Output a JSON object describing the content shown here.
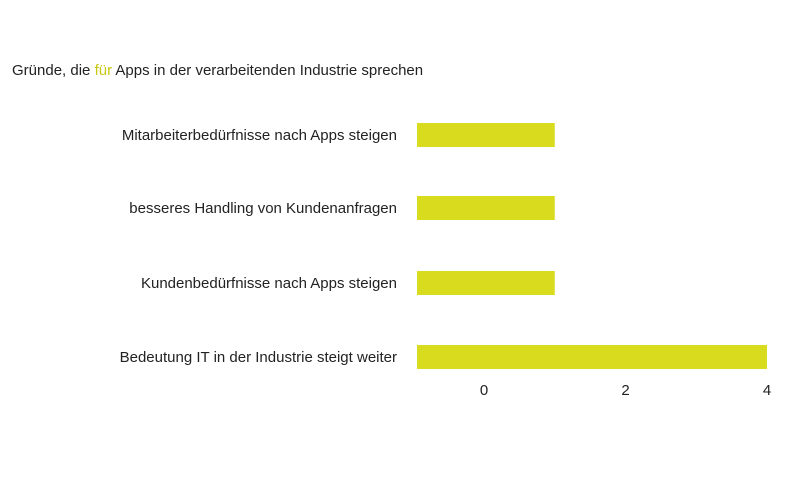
{
  "title": {
    "before": "Gründe, die ",
    "highlight": "für",
    "after": " Apps in der verarbeitenden Industrie sprechen"
  },
  "colors": {
    "bar": "#d9dc1e",
    "highlight": "#c9c914",
    "text": "#222222"
  },
  "chart_data": {
    "type": "bar",
    "orientation": "horizontal",
    "title": "Gründe, die für Apps in der verarbeitenden Industrie sprechen",
    "categories": [
      "Mitarbeiterbedürfnisse nach Apps steigen",
      "besseres Handling von Kundenanfragen",
      "Kundenbedürfnisse nach Apps steigen",
      "Bedeutung IT in der Industrie steigt weiter"
    ],
    "values": [
      1,
      1,
      1,
      4
    ],
    "xlim": [
      -1,
      4
    ],
    "xticks": [
      "0",
      "2",
      "4"
    ],
    "xtick_values": [
      0,
      2,
      4
    ],
    "grid": false,
    "legend": "none"
  }
}
